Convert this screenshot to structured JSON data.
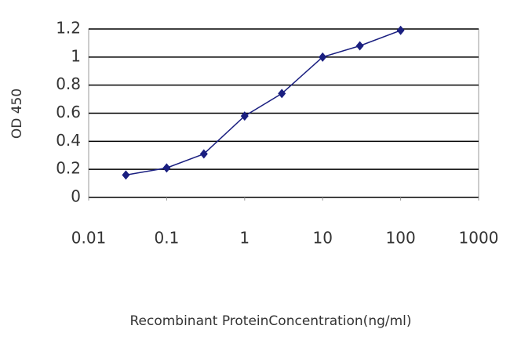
{
  "chart_data": {
    "type": "line",
    "x_label": "Recombinant ProteinConcentration(ng/ml)",
    "y_label": "OD 450",
    "x": [
      0.03,
      0.1,
      0.3,
      1,
      3,
      10,
      30,
      100
    ],
    "series": [
      {
        "color": "#1a1f80",
        "values": [
          0.16,
          0.21,
          0.31,
          0.58,
          0.74,
          1.0,
          1.08,
          1.19
        ]
      }
    ],
    "xlim": [
      0.01,
      1000
    ],
    "xticks": [
      0.01,
      0.1,
      1,
      10,
      100,
      1000
    ],
    "x_log": true,
    "ylim": [
      0,
      1.2
    ],
    "yticks": [
      0,
      0.2,
      0.4,
      0.6,
      0.8,
      1,
      1.2
    ],
    "grid": true
  }
}
